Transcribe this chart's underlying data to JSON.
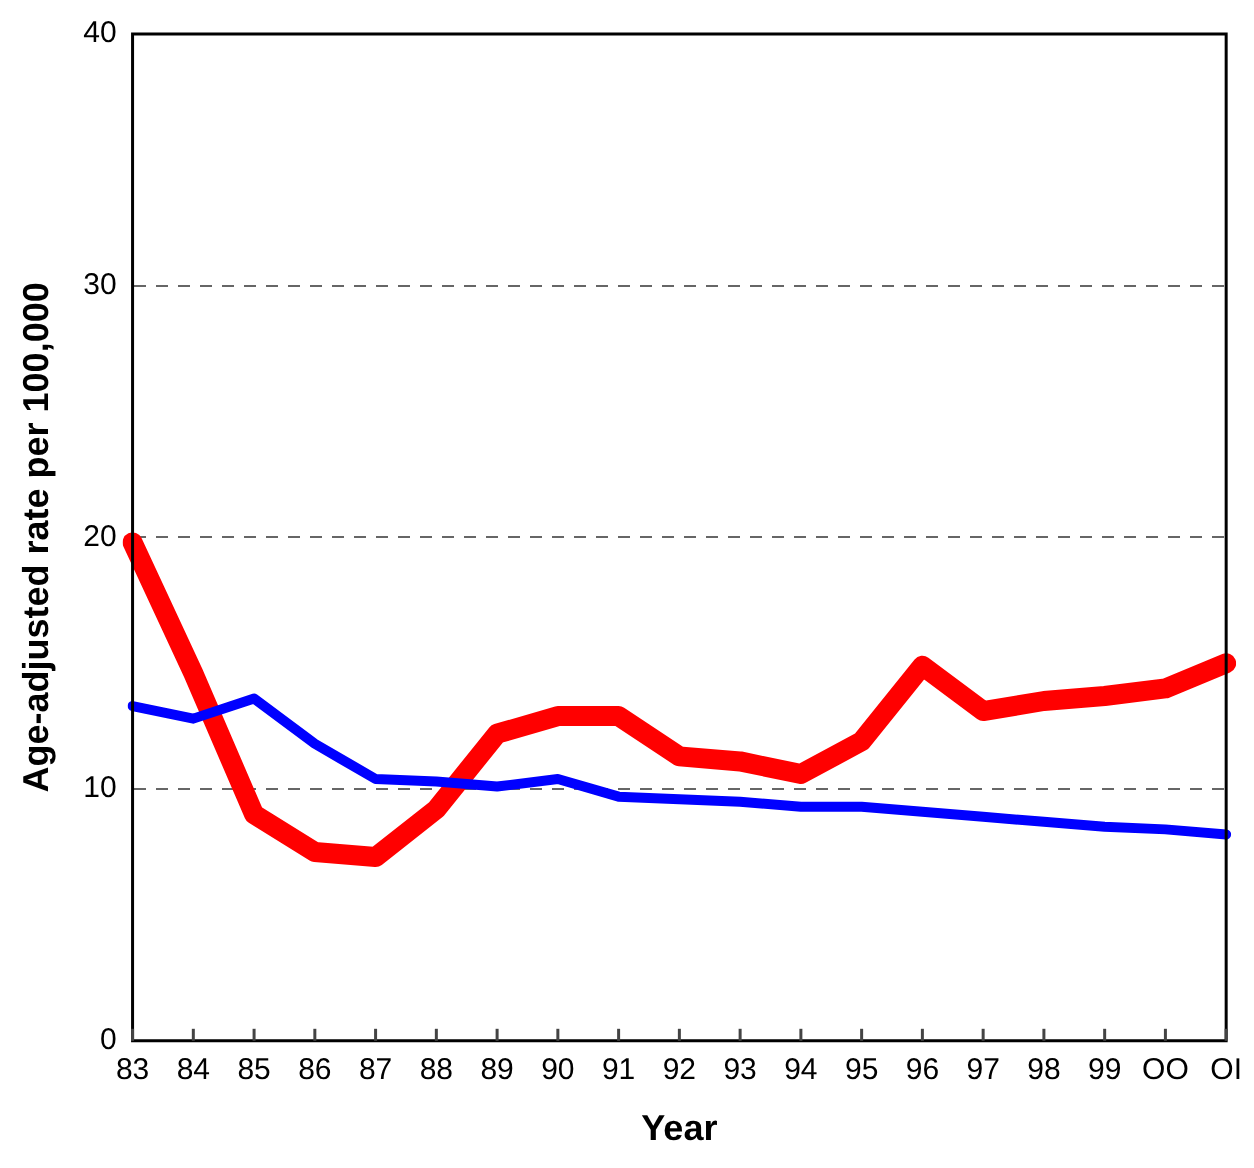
{
  "chart_data": {
    "type": "line",
    "xlabel": "Year",
    "ylabel": "Age-adjusted rate per 100,000",
    "categories": [
      "83",
      "84",
      "85",
      "86",
      "87",
      "88",
      "89",
      "90",
      "91",
      "92",
      "93",
      "94",
      "95",
      "96",
      "97",
      "98",
      "99",
      "OO",
      "OI"
    ],
    "series": [
      {
        "color": "#0000ff",
        "values": [
          13.3,
          12.8,
          13.6,
          11.8,
          10.4,
          10.3,
          10.1,
          10.4,
          9.7,
          9.6,
          9.5,
          9.3,
          9.3,
          9.1,
          8.9,
          8.7,
          8.5,
          8.4,
          8.2
        ]
      },
      {
        "color": "#ff0000",
        "values": [
          19.8,
          14.6,
          9.0,
          7.5,
          7.3,
          9.2,
          12.2,
          12.9,
          12.9,
          11.3,
          11.1,
          10.6,
          11.9,
          14.9,
          13.1,
          13.5,
          13.7,
          14.0,
          15.0
        ]
      }
    ],
    "ylim": [
      0,
      40
    ],
    "yticks": [
      0,
      10,
      20,
      30,
      40
    ],
    "grid": "y",
    "legend": false,
    "marker": "none",
    "line_style": "solid"
  }
}
